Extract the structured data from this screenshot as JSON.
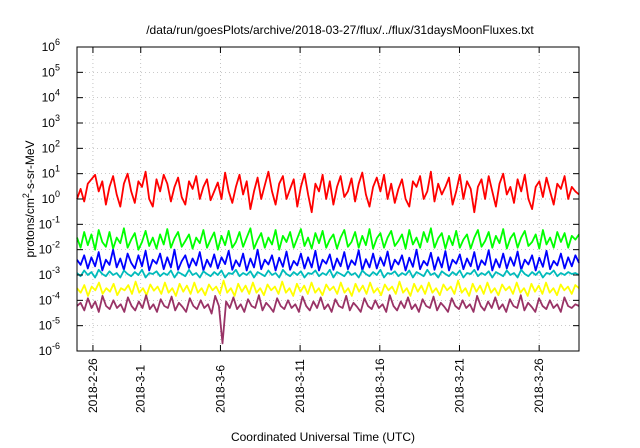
{
  "chart_data": {
    "type": "line",
    "title": "/data/run/goesPlots/archive/2018-03-27/flux/../flux/31daysMoonFluxes.txt",
    "xlabel": "Coordinated Universal Time (UTC)",
    "ylabel": {
      "base": "protons/cm",
      "sup": "2",
      "rest": "-s-sr-MeV"
    },
    "x_range": [
      "2018-02-25T00:00",
      "2018-03-28T12:00"
    ],
    "ylim": [
      1e-06,
      1000000.0
    ],
    "yscale": "log",
    "grid": true,
    "x_ticks": [
      "2018-2-26",
      "2018-3-1",
      "2018-3-6",
      "2018-3-11",
      "2018-3-16",
      "2018-3-21",
      "2018-3-26"
    ],
    "y_ticks": [
      {
        "exp": "-6",
        "value": 1e-06
      },
      {
        "exp": "-5",
        "value": 1e-05
      },
      {
        "exp": "-4",
        "value": 0.0001
      },
      {
        "exp": "-3",
        "value": 0.001
      },
      {
        "exp": "-2",
        "value": 0.01
      },
      {
        "exp": "-1",
        "value": 0.1
      },
      {
        "exp": "0",
        "value": 1
      },
      {
        "exp": "1",
        "value": 10
      },
      {
        "exp": "2",
        "value": 100
      },
      {
        "exp": "3",
        "value": 1000.0
      },
      {
        "exp": "4",
        "value": 10000.0
      },
      {
        "exp": "5",
        "value": 100000.0
      },
      {
        "exp": "6",
        "value": 1000000.0
      }
    ],
    "tick_base": "10",
    "series": [
      {
        "color": "#ff0000",
        "values": [
          1.0,
          2.5,
          0.8,
          4.0,
          6.0,
          9.0,
          2.0,
          5.0,
          0.6,
          3.0,
          8.0,
          1.5,
          0.5,
          4.0,
          10.0,
          2.0,
          0.7,
          5.0,
          3.0,
          12.0,
          1.0,
          0.5,
          6.0,
          2.0,
          9.0,
          4.0,
          0.8,
          3.0,
          7.0,
          1.2,
          0.6,
          5.0,
          2.5,
          8.0,
          1.0,
          3.0,
          6.0,
          0.9,
          2.0,
          4.5,
          1.0,
          11.0,
          2.0,
          0.7,
          3.0,
          9.0,
          1.5,
          5.0,
          0.4,
          2.0,
          7.0,
          1.0,
          3.5,
          12.0,
          2.0,
          0.6,
          4.0,
          8.0,
          1.0,
          2.5,
          6.0,
          0.5,
          3.0,
          10.0,
          1.5,
          0.3,
          4.0,
          2.0,
          9.0,
          1.0,
          5.0,
          0.6,
          3.0,
          8.0,
          1.2,
          2.0,
          6.5,
          0.8,
          4.0,
          11.0,
          1.5,
          0.5,
          3.0,
          7.0,
          2.0,
          9.0,
          1.0,
          4.0,
          0.7,
          2.5,
          6.0,
          1.0,
          0.5,
          5.0,
          3.0,
          8.0,
          1.0,
          2.0,
          12.0,
          0.8,
          4.0,
          1.5,
          3.0,
          7.0,
          0.6,
          2.0,
          9.0,
          1.0,
          5.0,
          2.5,
          0.3,
          3.0,
          6.0,
          1.0,
          8.0,
          2.0,
          0.5,
          4.0,
          10.0,
          1.5,
          3.0,
          0.7,
          6.0,
          2.0,
          9.0,
          1.0,
          0.4,
          3.0,
          5.0,
          1.2,
          7.0,
          2.0,
          0.6,
          4.0,
          2.5,
          8.0,
          1.0,
          3.0,
          2.0,
          1.5
        ]
      },
      {
        "color": "#00ff00",
        "values": [
          0.03,
          0.012,
          0.05,
          0.015,
          0.04,
          0.01,
          0.06,
          0.02,
          0.013,
          0.05,
          0.011,
          0.03,
          0.018,
          0.07,
          0.012,
          0.025,
          0.045,
          0.01,
          0.02,
          0.055,
          0.014,
          0.03,
          0.011,
          0.04,
          0.016,
          0.065,
          0.012,
          0.028,
          0.05,
          0.013,
          0.022,
          0.04,
          0.011,
          0.03,
          0.018,
          0.06,
          0.012,
          0.025,
          0.048,
          0.01,
          0.035,
          0.015,
          0.055,
          0.012,
          0.02,
          0.05,
          0.013,
          0.03,
          0.07,
          0.011,
          0.024,
          0.045,
          0.012,
          0.03,
          0.016,
          0.06,
          0.01,
          0.035,
          0.02,
          0.05,
          0.012,
          0.028,
          0.065,
          0.014,
          0.03,
          0.011,
          0.045,
          0.018,
          0.055,
          0.012,
          0.025,
          0.04,
          0.011,
          0.03,
          0.06,
          0.013,
          0.02,
          0.05,
          0.012,
          0.035,
          0.015,
          0.065,
          0.011,
          0.028,
          0.045,
          0.012,
          0.03,
          0.055,
          0.014,
          0.022,
          0.04,
          0.011,
          0.06,
          0.016,
          0.03,
          0.012,
          0.05,
          0.02,
          0.07,
          0.012,
          0.028,
          0.045,
          0.011,
          0.035,
          0.015,
          0.055,
          0.012,
          0.025,
          0.04,
          0.011,
          0.03,
          0.06,
          0.013,
          0.022,
          0.05,
          0.012,
          0.035,
          0.018,
          0.065,
          0.011,
          0.028,
          0.045,
          0.012,
          0.03,
          0.055,
          0.014,
          0.02,
          0.04,
          0.011,
          0.06,
          0.016,
          0.03,
          0.012,
          0.05,
          0.02,
          0.045,
          0.012,
          0.035,
          0.025,
          0.04
        ]
      },
      {
        "color": "#0000ff",
        "values": [
          0.004,
          0.0025,
          0.006,
          0.0018,
          0.005,
          0.0022,
          0.008,
          0.0015,
          0.004,
          0.0025,
          0.01,
          0.002,
          0.0045,
          0.0016,
          0.007,
          0.003,
          0.0018,
          0.006,
          0.0022,
          0.009,
          0.0015,
          0.004,
          0.0028,
          0.007,
          0.0017,
          0.005,
          0.002,
          0.01,
          0.0016,
          0.0035,
          0.006,
          0.0019,
          0.0045,
          0.0024,
          0.008,
          0.0015,
          0.004,
          0.0021,
          0.0065,
          0.0018,
          0.005,
          0.0027,
          0.009,
          0.0016,
          0.0038,
          0.0022,
          0.007,
          0.0015,
          0.0045,
          0.002,
          0.01,
          0.0017,
          0.004,
          0.0026,
          0.006,
          0.0015,
          0.0048,
          0.0021,
          0.0085,
          0.0016,
          0.0036,
          0.0024,
          0.007,
          0.0018,
          0.005,
          0.002,
          0.009,
          0.0015,
          0.004,
          0.0028,
          0.0065,
          0.0016,
          0.0045,
          0.0022,
          0.008,
          0.0017,
          0.0038,
          0.0025,
          0.0095,
          0.0015,
          0.0042,
          0.002,
          0.007,
          0.0018,
          0.005,
          0.0023,
          0.0085,
          0.0016,
          0.004,
          0.0026,
          0.006,
          0.0015,
          0.0048,
          0.0021,
          0.01,
          0.0017,
          0.0036,
          0.0024,
          0.0075,
          0.0016,
          0.005,
          0.002,
          0.0088,
          0.0015,
          0.004,
          0.0028,
          0.0065,
          0.0017,
          0.0045,
          0.0022,
          0.008,
          0.0016,
          0.0038,
          0.0025,
          0.0095,
          0.0015,
          0.0042,
          0.002,
          0.007,
          0.0018,
          0.005,
          0.0023,
          0.0085,
          0.0016,
          0.004,
          0.0026,
          0.006,
          0.0015,
          0.0048,
          0.0021,
          0.009,
          0.0017,
          0.0036,
          0.0024,
          0.007,
          0.0018,
          0.005,
          0.0022,
          0.006,
          0.003
        ]
      },
      {
        "color": "#00bbbb",
        "values": [
          0.0012,
          0.0009,
          0.0015,
          0.001,
          0.0013,
          0.0008,
          0.0016,
          0.0011,
          0.0009,
          0.0014,
          0.001,
          0.0012,
          0.0008,
          0.0015,
          0.0011,
          0.0009,
          0.0013,
          0.001,
          0.0016,
          0.0008,
          0.0012,
          0.0011,
          0.0014,
          0.0009,
          0.0012,
          0.001,
          0.0015,
          0.0008,
          0.0013,
          0.0011,
          0.0009,
          0.0016,
          0.001,
          0.0012,
          0.0008,
          0.0014,
          0.0011,
          0.0009,
          0.0013,
          0.001,
          0.0015,
          0.0008,
          0.0012,
          0.0011,
          0.0016,
          0.0009,
          0.0012,
          0.001,
          0.0014,
          0.0008,
          0.0013,
          0.0011,
          0.0009,
          0.0015,
          0.001,
          0.0012,
          0.0008,
          0.0016,
          0.0011,
          0.0009,
          0.0013,
          0.001,
          0.0014,
          0.0008,
          0.0012,
          0.0011,
          0.0015,
          0.0009,
          0.0012,
          0.001,
          0.0016,
          0.0008,
          0.0013,
          0.0011,
          0.0009,
          0.0014,
          0.001,
          0.0012,
          0.0008,
          0.0015,
          0.0011,
          0.0009,
          0.0013,
          0.001,
          0.0016,
          0.0008,
          0.0012,
          0.0011,
          0.0014,
          0.0009,
          0.0012,
          0.001,
          0.0015,
          0.0008,
          0.0013,
          0.0011,
          0.0009,
          0.0016,
          0.001,
          0.0012,
          0.0008,
          0.0014,
          0.0011,
          0.0009,
          0.0013,
          0.001,
          0.0015,
          0.0008,
          0.0012,
          0.0011,
          0.0016,
          0.0009,
          0.0012,
          0.001,
          0.0014,
          0.0008,
          0.0013,
          0.0011,
          0.0009,
          0.0015,
          0.001,
          0.0012,
          0.0008,
          0.0016,
          0.0011,
          0.0009,
          0.0013,
          0.001,
          0.0014,
          0.0008,
          0.0012,
          0.0011,
          0.0015,
          0.0009,
          0.0012,
          0.001,
          0.0013,
          0.0011,
          0.0012,
          0.001
        ]
      },
      {
        "color": "#ffff00",
        "values": [
          0.0003,
          0.0002,
          0.0004,
          0.00015,
          0.00035,
          0.00025,
          0.0005,
          0.00018,
          0.0003,
          0.00022,
          0.00045,
          0.00016,
          0.0003,
          0.00025,
          0.0004,
          0.00018,
          0.00055,
          0.0002,
          0.0003,
          0.00016,
          0.00042,
          0.00024,
          0.00035,
          0.00018,
          0.0005,
          0.0002,
          0.0003,
          0.00015,
          0.00045,
          0.00022,
          0.00038,
          0.00018,
          0.0005,
          0.0002,
          0.0003,
          0.00016,
          0.00042,
          0.00025,
          0.00035,
          0.00018,
          0.0006,
          0.0002,
          0.0003,
          0.00015,
          0.00045,
          0.00022,
          0.00038,
          0.00018,
          0.0005,
          0.0002,
          0.0003,
          0.00016,
          0.00042,
          0.00025,
          0.00035,
          0.00018,
          0.00055,
          0.0002,
          0.0003,
          0.00015,
          0.00045,
          0.00022,
          0.00038,
          0.00018,
          0.0005,
          0.0002,
          0.0003,
          0.00016,
          0.00042,
          0.00025,
          0.00035,
          0.00018,
          0.0005,
          0.0002,
          0.0003,
          0.00015,
          0.00045,
          0.00022,
          0.00038,
          0.00018,
          0.0005,
          0.0002,
          0.0003,
          0.00016,
          0.00042,
          0.00025,
          0.00035,
          0.00018,
          0.00055,
          0.0002,
          0.0003,
          0.00015,
          0.00045,
          0.00022,
          0.00038,
          0.00018,
          0.0005,
          0.0002,
          0.0003,
          0.00016,
          0.00042,
          0.00025,
          0.00035,
          0.00018,
          0.0006,
          0.0002,
          0.0003,
          0.00015,
          0.00045,
          0.00022,
          0.00038,
          0.00018,
          0.0005,
          0.0002,
          0.0003,
          0.00016,
          0.00042,
          0.00025,
          0.00035,
          0.00018,
          0.0005,
          0.0002,
          0.0003,
          0.00015,
          0.00045,
          0.00022,
          0.00038,
          0.00018,
          0.0005,
          0.0002,
          0.0003,
          0.00016,
          0.00042,
          0.00025,
          0.00035,
          0.00018,
          0.0004,
          0.0003
        ]
      },
      {
        "color": "#993366",
        "values": [
          6e-05,
          8e-05,
          4e-05,
          0.00012,
          5e-05,
          9e-05,
          3.5e-05,
          0.00015,
          6e-05,
          4.5e-05,
          0.0001,
          5e-05,
          7e-05,
          3.5e-05,
          0.00013,
          6e-05,
          4e-05,
          9e-05,
          5e-05,
          0.00016,
          4.5e-05,
          7e-05,
          3.5e-05,
          0.00011,
          6e-05,
          5e-05,
          0.00014,
          4e-05,
          8e-05,
          5.5e-05,
          3.5e-05,
          0.00012,
          6e-05,
          4.5e-05,
          0.0001,
          5e-05,
          7e-05,
          3e-05,
          0.00015,
          6e-05,
          2e-06,
          9e-05,
          5e-05,
          0.00013,
          4.5e-05,
          7e-05,
          3.5e-05,
          0.00011,
          6e-05,
          5e-05,
          0.00016,
          4e-05,
          8e-05,
          5.5e-05,
          3.5e-05,
          0.00012,
          6e-05,
          4.5e-05,
          0.0001,
          5e-05,
          7e-05,
          3.5e-05,
          0.00014,
          6e-05,
          4e-05,
          9e-05,
          5e-05,
          0.00013,
          4.5e-05,
          7e-05,
          3.5e-05,
          0.00011,
          6e-05,
          5e-05,
          0.00015,
          4e-05,
          8e-05,
          5.5e-05,
          3.5e-05,
          0.00012,
          6e-05,
          4.5e-05,
          0.0001,
          5e-05,
          7e-05,
          3.5e-05,
          0.00016,
          6e-05,
          4e-05,
          9e-05,
          5e-05,
          0.00013,
          4.5e-05,
          7e-05,
          3.5e-05,
          0.00011,
          6e-05,
          5e-05,
          0.00014,
          4e-05,
          8e-05,
          5.5e-05,
          3.5e-05,
          0.00012,
          6e-05,
          4.5e-05,
          0.0001,
          5e-05,
          7e-05,
          3.5e-05,
          0.00015,
          6e-05,
          4e-05,
          9e-05,
          5e-05,
          0.00013,
          4.5e-05,
          7e-05,
          3.5e-05,
          0.00011,
          6e-05,
          5e-05,
          0.00016,
          4e-05,
          8e-05,
          5.5e-05,
          3.5e-05,
          0.00012,
          6e-05,
          4.5e-05,
          0.0001,
          5e-05,
          7e-05,
          3.5e-05,
          0.00013,
          6e-05,
          5e-05,
          7e-05,
          6e-05
        ]
      }
    ]
  }
}
